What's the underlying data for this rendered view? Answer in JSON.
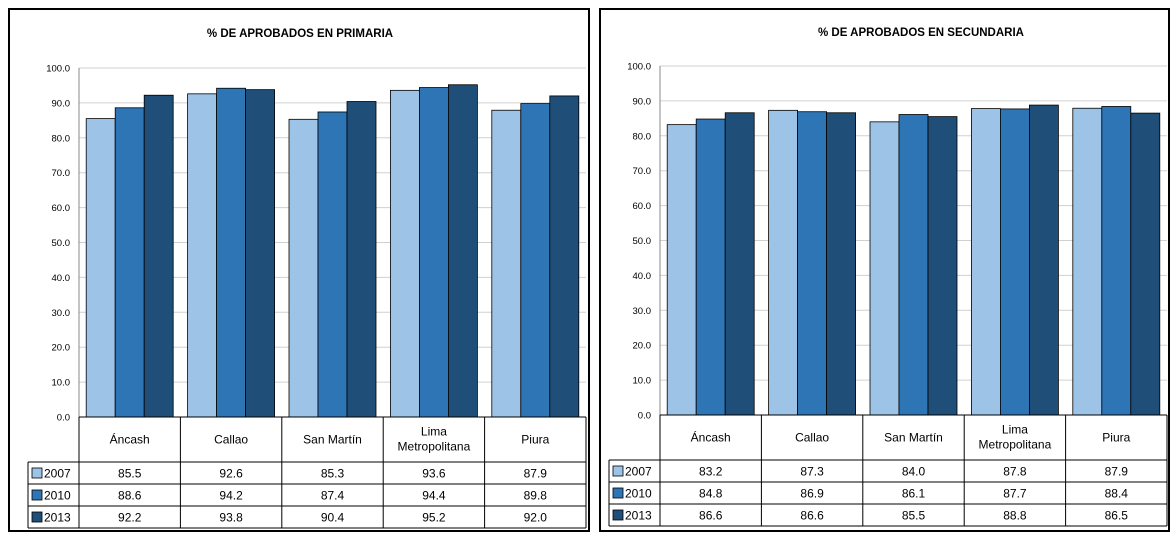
{
  "chart_data": [
    {
      "type": "bar",
      "title": "% DE APROBADOS EN PRIMARIA",
      "categories": [
        "Áncash",
        "Callao",
        "San Martín",
        "Lima Metropolitana",
        "Piura"
      ],
      "category_lines": [
        [
          "Áncash"
        ],
        [
          "Callao"
        ],
        [
          "San Martín"
        ],
        [
          "Lima",
          "Metropolitana"
        ],
        [
          "Piura"
        ]
      ],
      "series": [
        {
          "name": "2007",
          "color": "#9dc3e6",
          "values": [
            85.5,
            92.6,
            85.3,
            93.6,
            87.9
          ],
          "labels": [
            "85.5",
            "92.6",
            "85.3",
            "93.6",
            "87.9"
          ]
        },
        {
          "name": "2010",
          "color": "#2e75b6",
          "values": [
            88.6,
            94.2,
            87.4,
            94.4,
            89.8
          ],
          "labels": [
            "88.6",
            "94.2",
            "87.4",
            "94.4",
            "89.8"
          ]
        },
        {
          "name": "2013",
          "color": "#1f4e79",
          "values": [
            92.2,
            93.8,
            90.4,
            95.2,
            92.0
          ],
          "labels": [
            "92.2",
            "93.8",
            "90.4",
            "95.2",
            "92.0"
          ]
        }
      ],
      "yticks": [
        "0.0",
        "10.0",
        "20.0",
        "30.0",
        "40.0",
        "50.0",
        "60.0",
        "70.0",
        "80.0",
        "90.0",
        "100.0"
      ],
      "ylim": [
        0,
        100
      ],
      "grid": true,
      "legend": "data table"
    },
    {
      "type": "bar",
      "title": "% DE APROBADOS EN SECUNDARIA",
      "categories": [
        "Áncash",
        "Callao",
        "San Martín",
        "Lima Metropolitana",
        "Piura"
      ],
      "category_lines": [
        [
          "Áncash"
        ],
        [
          "Callao"
        ],
        [
          "San Martín"
        ],
        [
          "Lima",
          "Metropolitana"
        ],
        [
          "Piura"
        ]
      ],
      "series": [
        {
          "name": "2007",
          "color": "#9dc3e6",
          "values": [
            83.2,
            87.3,
            84.0,
            87.8,
            87.9
          ],
          "labels": [
            "83.2",
            "87.3",
            "84.0",
            "87.8",
            "87.9"
          ]
        },
        {
          "name": "2010",
          "color": "#2e75b6",
          "values": [
            84.8,
            86.9,
            86.1,
            87.7,
            88.4
          ],
          "labels": [
            "84.8",
            "86.9",
            "86.1",
            "87.7",
            "88.4"
          ]
        },
        {
          "name": "2013",
          "color": "#1f4e79",
          "values": [
            86.6,
            86.6,
            85.5,
            88.8,
            86.5
          ],
          "labels": [
            "86.6",
            "86.6",
            "85.5",
            "88.8",
            "86.5"
          ]
        }
      ],
      "yticks": [
        "0.0",
        "10.0",
        "20.0",
        "30.0",
        "40.0",
        "50.0",
        "60.0",
        "70.0",
        "80.0",
        "90.0",
        "100.0"
      ],
      "ylim": [
        0,
        100
      ],
      "grid": true,
      "legend": "data table"
    }
  ]
}
